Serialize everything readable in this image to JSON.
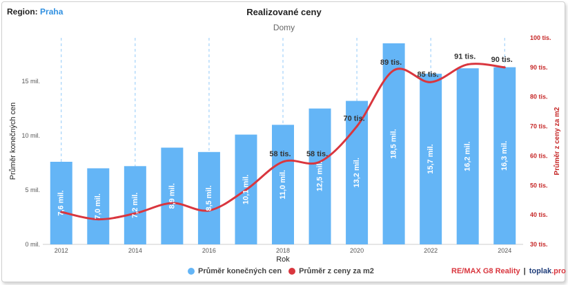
{
  "region": {
    "label": "Region:",
    "value": "Praha"
  },
  "footer": {
    "brand": "RE/MAX G8 Reality",
    "separator": "|",
    "site": "toplak",
    "tld": ".pro"
  },
  "colors": {
    "bar": "#64b5f6",
    "line": "#d9363e",
    "axis_right": "#c62828",
    "text": "#333333"
  },
  "chart_data": {
    "type": "bar",
    "title": "Realizované ceny",
    "subtitle": "Domy",
    "xlabel": "Rok",
    "ylabel": "Průměr konečných cen",
    "ylabel_right": "Průměr z ceny za m2",
    "categories": [
      "2012",
      "2013",
      "2014",
      "2015",
      "2016",
      "2017",
      "2018",
      "2019",
      "2020",
      "2021",
      "2022",
      "2023",
      "2024"
    ],
    "x_tick_labels": [
      "2012",
      "",
      "2014",
      "",
      "2016",
      "",
      "2018",
      "",
      "2020",
      "",
      "2022",
      "",
      "2024"
    ],
    "ylim": [
      0,
      19
    ],
    "y_ticks": [
      0,
      5,
      10,
      15
    ],
    "y_tick_labels": [
      "0 mil.",
      "5 mil.",
      "10 mil.",
      "15 mil."
    ],
    "ylim_right": [
      30,
      100
    ],
    "y_ticks_right": [
      30,
      40,
      50,
      60,
      70,
      80,
      90,
      100
    ],
    "y_tick_labels_right": [
      "30 tis.",
      "40 tis.",
      "50 tis.",
      "60 tis.",
      "70 tis.",
      "80 tis.",
      "90 tis.",
      "100 tis."
    ],
    "series": [
      {
        "name": "Průměr konečných cen",
        "type": "bar",
        "axis": "left",
        "values": [
          7.6,
          7.0,
          7.2,
          8.9,
          8.5,
          10.1,
          11.0,
          12.5,
          13.2,
          18.5,
          15.7,
          16.2,
          16.3
        ],
        "labels": [
          "7,6 mil.",
          "7,0 mil.",
          "7,2 mil.",
          "8,9 mil.",
          "8,5 mil.",
          "10,1 mil.",
          "11,0 mil.",
          "12,5 mil.",
          "13,2 mil.",
          "18,5 mil.",
          "15,7 mil.",
          "16,2 mil.",
          "16,3 mil."
        ]
      },
      {
        "name": "Průměr z ceny za m2",
        "type": "line",
        "axis": "right",
        "values": [
          41,
          38.5,
          40.5,
          44,
          41.5,
          48.5,
          58,
          58,
          70,
          89,
          85,
          91,
          90
        ],
        "labels": [
          "",
          "",
          "",
          "",
          "",
          "",
          "58 tis.",
          "58 tis.",
          "70 tis.",
          "89 tis.",
          "85 tis.",
          "91 tis.",
          "90 tis."
        ]
      }
    ],
    "dashed_gridlines_at": [
      "2012",
      "2014",
      "2016",
      "2018",
      "2020",
      "2022",
      "2024"
    ],
    "legend_position": "bottom"
  }
}
